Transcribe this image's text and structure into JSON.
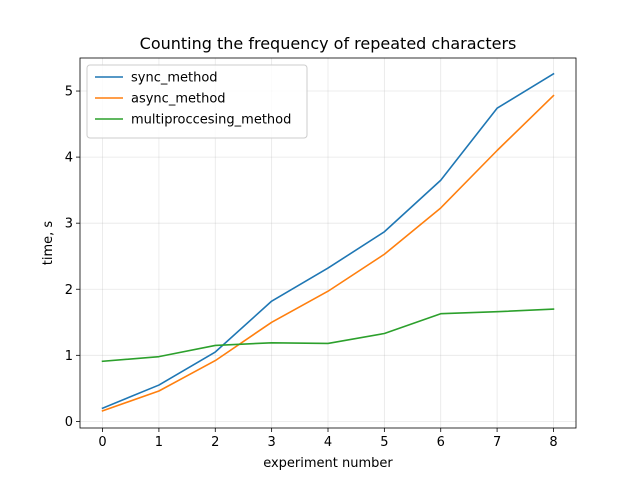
{
  "chart_data": {
    "type": "line",
    "title": "Counting the frequency of repeated characters",
    "xlabel": "experiment number",
    "ylabel": "time, s",
    "x": [
      0,
      1,
      2,
      3,
      4,
      5,
      6,
      7,
      8
    ],
    "xlim": [
      -0.4,
      8.4
    ],
    "ylim": [
      -0.1,
      5.5
    ],
    "xticks": [
      0,
      1,
      2,
      3,
      4,
      5,
      6,
      7,
      8
    ],
    "yticks": [
      0,
      1,
      2,
      3,
      4,
      5
    ],
    "grid": true,
    "legend_position": "upper-left",
    "series": [
      {
        "name": "sync_method",
        "color": "#1f77b4",
        "values": [
          0.2,
          0.55,
          1.05,
          1.82,
          2.32,
          2.87,
          3.65,
          4.74,
          5.26
        ]
      },
      {
        "name": "async_method",
        "color": "#ff7f0e",
        "values": [
          0.16,
          0.46,
          0.92,
          1.5,
          1.97,
          2.53,
          3.23,
          4.1,
          4.93
        ]
      },
      {
        "name": "multiproccesing_method",
        "color": "#2ca02c",
        "values": [
          0.91,
          0.98,
          1.15,
          1.19,
          1.18,
          1.33,
          1.63,
          1.66,
          1.7
        ]
      }
    ]
  }
}
